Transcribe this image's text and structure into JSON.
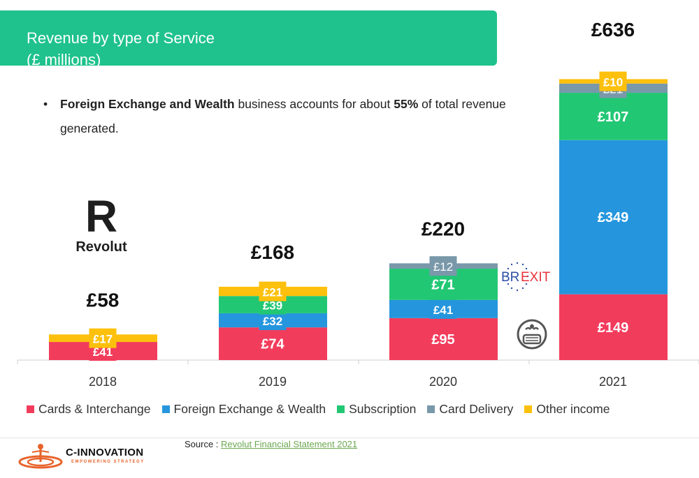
{
  "header": {
    "title_line1": "Revenue by type of Service",
    "title_line2": "(£ millions)"
  },
  "bullet": {
    "bold1": "Foreign Exchange and Wealth",
    "text1": " business accounts for about ",
    "bold2": "55%",
    "text2": " of total revenue generated."
  },
  "logos": {
    "revolut_letter": "R",
    "revolut_name": "Revolut",
    "brexit_br": "BR",
    "brexit_exit": "EXIT",
    "cinnovation_name": "C-INNOVATION",
    "cinnovation_tagline": "EMPOWERING STRATEGY"
  },
  "source": {
    "label": "Source : ",
    "link": "Revolut Financial Statement 2021"
  },
  "colors": {
    "header": "#1fc28c",
    "cards": "#f23c5c",
    "fx": "#2596dd",
    "subscription": "#22c774",
    "delivery": "#7998aa",
    "other": "#fdc00c"
  },
  "chart_data": {
    "type": "bar",
    "stacked": true,
    "categories": [
      "2018",
      "2019",
      "2020",
      "2021"
    ],
    "totals": [
      "£58",
      "£168",
      "£220",
      "£636"
    ],
    "series": [
      {
        "name": "Cards & Interchange",
        "color": "#f23c5c",
        "values": [
          41,
          74,
          95,
          149
        ],
        "labels": [
          "£41",
          "£74",
          "£95",
          "£149"
        ]
      },
      {
        "name": "Foreign Exchange & Wealth",
        "color": "#2596dd",
        "values": [
          0,
          32,
          41,
          349
        ],
        "labels": [
          "",
          "£32",
          "£41",
          "£349"
        ]
      },
      {
        "name": "Subscription",
        "color": "#22c774",
        "values": [
          0,
          39,
          71,
          107
        ],
        "labels": [
          "",
          "£39",
          "£71",
          "£107"
        ]
      },
      {
        "name": "Card Delivery",
        "color": "#7998aa",
        "values": [
          0,
          0,
          12,
          21
        ],
        "labels": [
          "",
          "",
          "£12",
          "£21"
        ]
      },
      {
        "name": "Other income",
        "color": "#fdc00c",
        "values": [
          17,
          21,
          0,
          10
        ],
        "labels": [
          "£17",
          "£21",
          "",
          "£10"
        ]
      }
    ],
    "legend_position": "bottom",
    "grid": false
  }
}
